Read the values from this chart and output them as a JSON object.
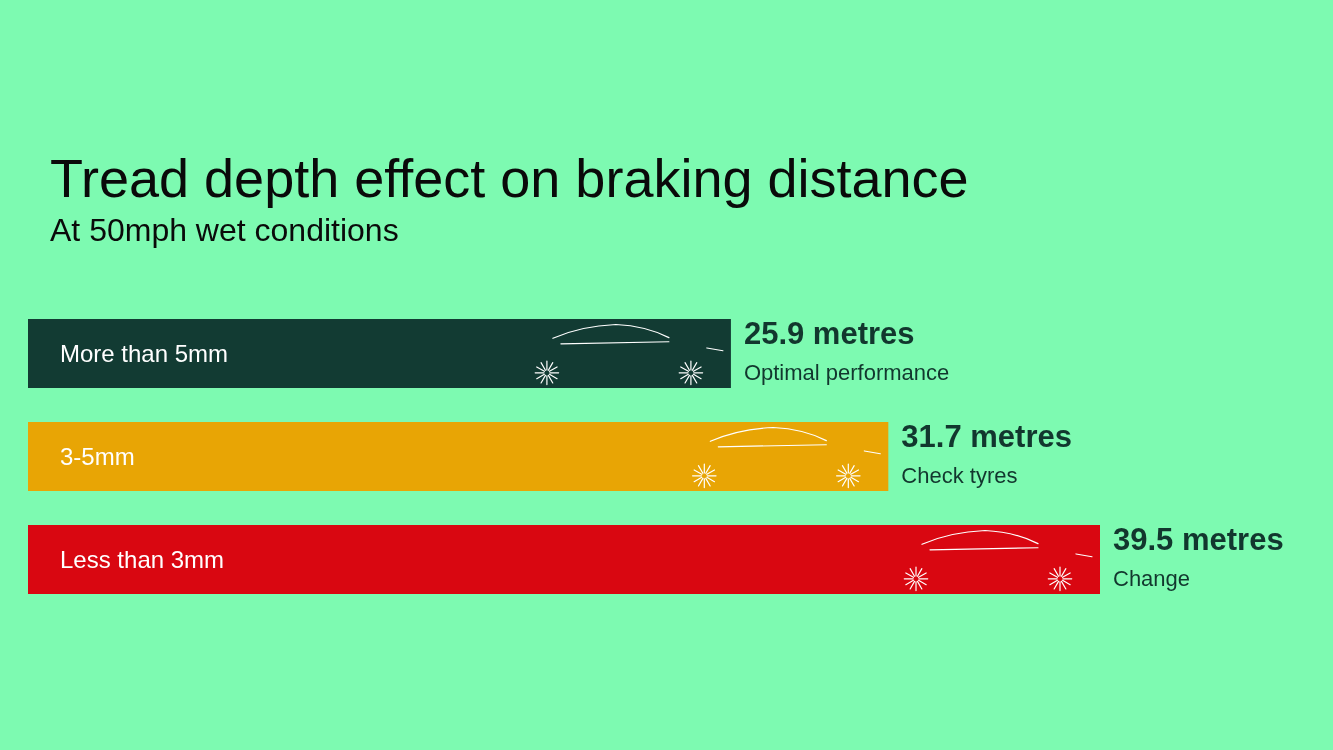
{
  "chart_data": {
    "type": "bar",
    "orientation": "horizontal",
    "title": "Tread depth effect on braking distance",
    "subtitle": "At 50mph wet conditions",
    "categories": [
      "More than 5mm",
      "3-5mm",
      "Less than 3mm"
    ],
    "values": [
      25.9,
      31.7,
      39.5
    ],
    "colors": [
      "#123b33",
      "#e8a505",
      "#d90711"
    ],
    "value_labels": [
      "25.9 metres",
      "31.7 metres",
      "39.5 metres"
    ],
    "annotations": [
      {
        "text": "Optimal performance",
        "x": 25.9,
        "y": "More than 5mm"
      },
      {
        "text": "Check tyres",
        "x": 31.7,
        "y": "3-5mm"
      },
      {
        "text": "Change",
        "x": 39.5,
        "y": "Less than 3mm"
      }
    ]
  }
}
